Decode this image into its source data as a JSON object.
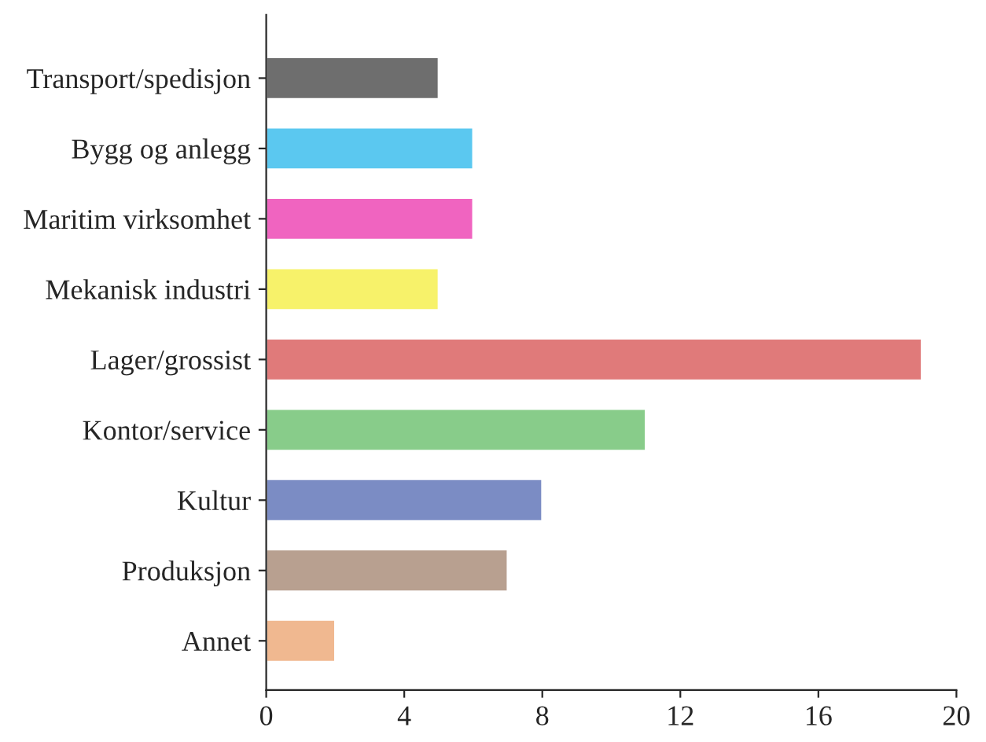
{
  "chart_data": {
    "type": "bar",
    "orientation": "horizontal",
    "categories": [
      "Transport/spedisjon",
      "Bygg og anlegg",
      "Maritim virksomhet",
      "Mekanisk industri",
      "Lager/grossist",
      "Kontor/service",
      "Kultur",
      "Produksjon",
      "Annet"
    ],
    "values": [
      5,
      6,
      6,
      5,
      19,
      11,
      8,
      7,
      2
    ],
    "colors": [
      "#6e6e6e",
      "#5bc8f0",
      "#f064c0",
      "#f7f26a",
      "#e07a7a",
      "#88cc8a",
      "#7b8cc4",
      "#b8a090",
      "#f0b890"
    ],
    "xlim": [
      0,
      20
    ],
    "xticks": [
      0,
      4,
      8,
      12,
      16,
      20
    ],
    "grid": false
  }
}
